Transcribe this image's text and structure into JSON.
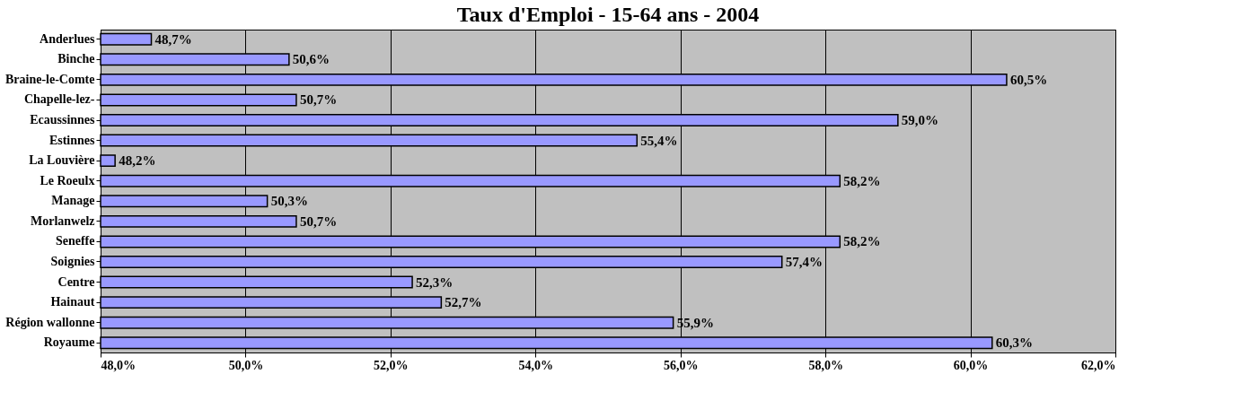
{
  "chart_data": {
    "type": "bar",
    "orientation": "horizontal",
    "title": "Taux d'Emploi - 15-64 ans - 2004",
    "categories": [
      "Anderlues",
      "Binche",
      "Braine-le-Comte",
      "Chapelle-lez-",
      "Ecaussinnes",
      "Estinnes",
      "La Louvière",
      "Le Roeulx",
      "Manage",
      "Morlanwelz",
      "Seneffe",
      "Soignies",
      "Centre",
      "Hainaut",
      "Région wallonne",
      "Royaume"
    ],
    "values": [
      48.7,
      50.6,
      60.5,
      50.7,
      59.0,
      55.4,
      48.2,
      58.2,
      50.3,
      50.7,
      58.2,
      57.4,
      52.3,
      52.7,
      55.9,
      60.3
    ],
    "value_labels": [
      "48,7%",
      "50,6%",
      "60,5%",
      "50,7%",
      "59,0%",
      "55,4%",
      "48,2%",
      "58,2%",
      "50,3%",
      "50,7%",
      "58,2%",
      "57,4%",
      "52,3%",
      "52,7%",
      "55,9%",
      "60,3%"
    ],
    "color": "#9999ff",
    "xlim": [
      48,
      62
    ],
    "xticks": [
      {
        "value": 48,
        "label": "48,0%"
      },
      {
        "value": 50,
        "label": "50,0%"
      },
      {
        "value": 52,
        "label": "52,0%"
      },
      {
        "value": 54,
        "label": "54,0%"
      },
      {
        "value": 56,
        "label": "56,0%"
      },
      {
        "value": 58,
        "label": "58,0%"
      },
      {
        "value": 60,
        "label": "60,0%"
      },
      {
        "value": 62,
        "label": "62,0%"
      }
    ],
    "grid": "x"
  }
}
